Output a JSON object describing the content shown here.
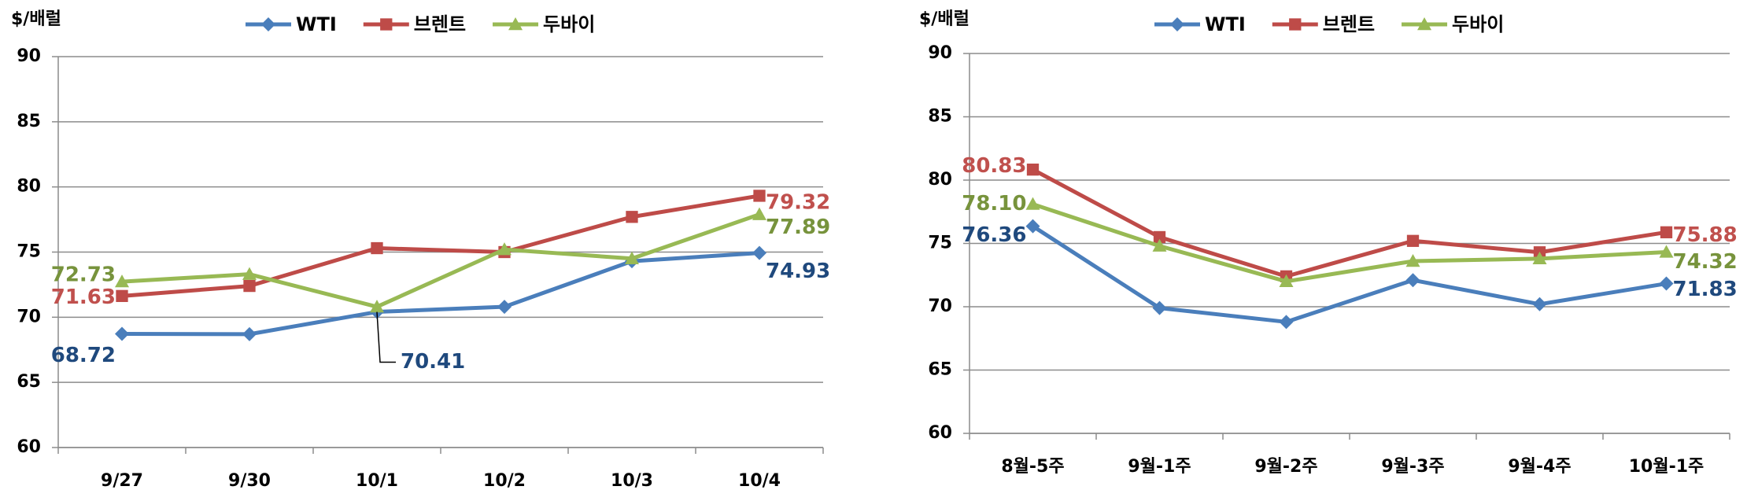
{
  "chart_data": [
    {
      "type": "line",
      "y_label": "$/배럴",
      "categories": [
        "9/27",
        "9/30",
        "10/1",
        "10/2",
        "10/3",
        "10/4"
      ],
      "ylim": [
        60,
        90
      ],
      "yticks": [
        60,
        65,
        70,
        75,
        80,
        85,
        90
      ],
      "grid": true,
      "series": [
        {
          "name": "WTI",
          "color": "#4a7ebb",
          "label_color": "#1f497d",
          "marker": "diamond",
          "values": [
            68.72,
            68.7,
            70.41,
            70.8,
            74.3,
            74.93
          ],
          "value_labels": [
            "68.72",
            null,
            "70.41",
            null,
            null,
            "74.93"
          ]
        },
        {
          "name": "브렌트",
          "color": "#be4b48",
          "label_color": "#c0504d",
          "marker": "square",
          "values": [
            71.63,
            72.4,
            75.3,
            75.0,
            77.7,
            79.32
          ],
          "value_labels": [
            "71.63",
            null,
            null,
            null,
            null,
            "79.32"
          ]
        },
        {
          "name": "두바이",
          "color": "#98b954",
          "label_color": "#77933c",
          "marker": "triangle",
          "values": [
            72.73,
            73.3,
            70.8,
            75.2,
            74.5,
            77.89
          ],
          "value_labels": [
            "72.73",
            null,
            null,
            null,
            null,
            "77.89"
          ]
        }
      ]
    },
    {
      "type": "line",
      "y_label": "$/배럴",
      "categories": [
        "8월-5주",
        "9월-1주",
        "9월-2주",
        "9월-3주",
        "9월-4주",
        "10월-1주"
      ],
      "ylim": [
        60,
        90
      ],
      "yticks": [
        60,
        65,
        70,
        75,
        80,
        85,
        90
      ],
      "grid": true,
      "series": [
        {
          "name": "WTI",
          "color": "#4a7ebb",
          "label_color": "#1f497d",
          "marker": "diamond",
          "values": [
            76.36,
            69.9,
            68.8,
            72.1,
            70.2,
            71.83
          ],
          "value_labels": [
            "76.36",
            null,
            null,
            null,
            null,
            "71.83"
          ]
        },
        {
          "name": "브렌트",
          "color": "#be4b48",
          "label_color": "#c0504d",
          "marker": "square",
          "values": [
            80.83,
            75.5,
            72.4,
            75.2,
            74.3,
            75.88
          ],
          "value_labels": [
            "80.83",
            null,
            null,
            null,
            null,
            "75.88"
          ]
        },
        {
          "name": "두바이",
          "color": "#98b954",
          "label_color": "#77933c",
          "marker": "triangle",
          "values": [
            78.1,
            74.8,
            72.0,
            73.6,
            73.8,
            74.32
          ],
          "value_labels": [
            "78.10",
            null,
            null,
            null,
            null,
            "74.32"
          ]
        }
      ]
    }
  ]
}
